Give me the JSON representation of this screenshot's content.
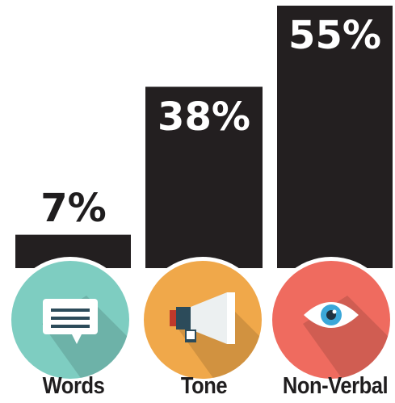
{
  "chart_data": {
    "type": "bar",
    "categories": [
      "Words",
      "Tone",
      "Non-Verbal"
    ],
    "values": [
      7,
      38,
      55
    ],
    "value_labels": [
      "7%",
      "38%",
      "55%"
    ],
    "ylim": [
      0,
      60
    ],
    "grid": false,
    "bar_color": "#231f20",
    "icons": [
      {
        "name": "speech-bubble-icon",
        "circle_color": "#7ecdc1"
      },
      {
        "name": "megaphone-icon",
        "circle_color": "#f0a84a"
      },
      {
        "name": "eye-icon",
        "circle_color": "#ef6b5f"
      }
    ]
  }
}
